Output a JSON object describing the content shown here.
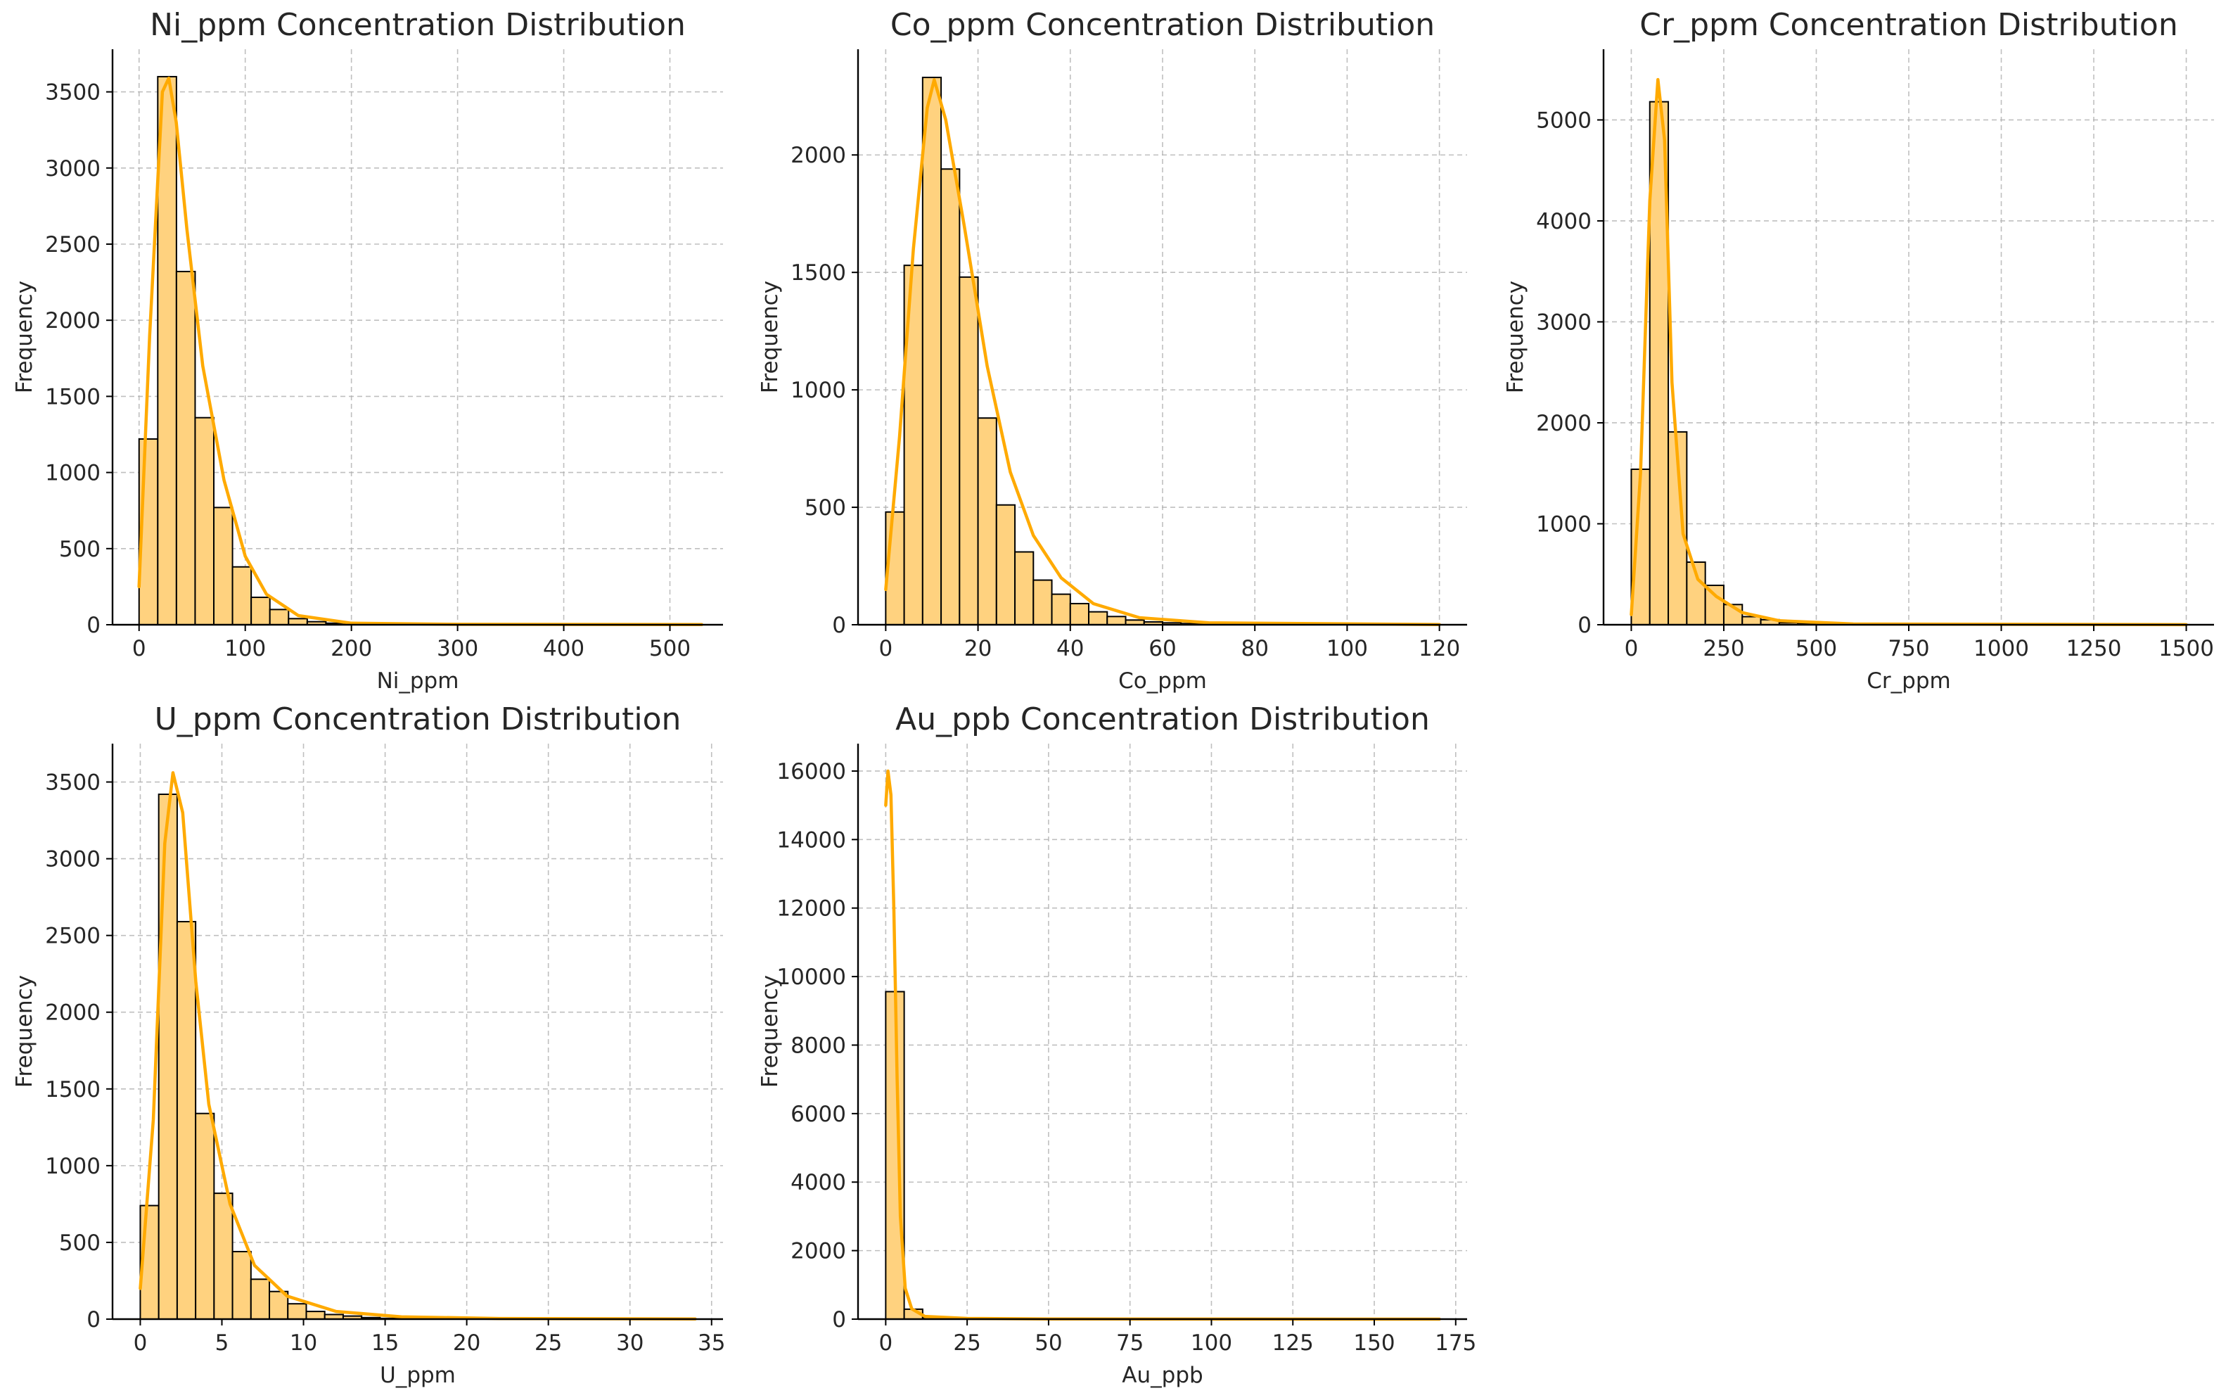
{
  "chart_data": [
    {
      "type": "bar",
      "title": "Ni_ppm Concentration Distribution",
      "xlabel": "Ni_ppm",
      "ylabel": "Frequency",
      "xlim": [
        -25,
        550
      ],
      "ylim": [
        0,
        3780
      ],
      "xticks": [
        0,
        100,
        200,
        300,
        400,
        500
      ],
      "yticks": [
        0,
        500,
        1000,
        1500,
        2000,
        2500,
        3000,
        3500
      ],
      "bin_start": 0,
      "bin_width": 17.6,
      "values": [
        1220,
        3600,
        2320,
        1360,
        770,
        380,
        180,
        100,
        40,
        20,
        10,
        5,
        3,
        3,
        2,
        2,
        2,
        1,
        1,
        1,
        1,
        1,
        1,
        1,
        1,
        1,
        1,
        1,
        1,
        1
      ],
      "kde": [
        [
          0,
          250
        ],
        [
          10,
          1900
        ],
        [
          22,
          3500
        ],
        [
          28,
          3590
        ],
        [
          35,
          3300
        ],
        [
          45,
          2600
        ],
        [
          60,
          1700
        ],
        [
          80,
          950
        ],
        [
          100,
          450
        ],
        [
          120,
          200
        ],
        [
          150,
          60
        ],
        [
          200,
          10
        ],
        [
          300,
          3
        ],
        [
          530,
          1
        ]
      ],
      "grid": true
    },
    {
      "type": "bar",
      "title": "Co_ppm Concentration Distribution",
      "xlabel": "Co_ppm",
      "ylabel": "Frequency",
      "xlim": [
        -6,
        126
      ],
      "ylim": [
        0,
        2450
      ],
      "xticks": [
        0,
        20,
        40,
        60,
        80,
        100,
        120
      ],
      "yticks": [
        0,
        500,
        1000,
        1500,
        2000
      ],
      "bin_start": 0,
      "bin_width": 4,
      "values": [
        480,
        1530,
        2330,
        1940,
        1480,
        880,
        510,
        310,
        190,
        130,
        90,
        55,
        35,
        20,
        12,
        8,
        5,
        4,
        3,
        2,
        2,
        1,
        1,
        1,
        1,
        1,
        1,
        1,
        1,
        1
      ],
      "kde": [
        [
          0,
          150
        ],
        [
          3,
          800
        ],
        [
          6,
          1600
        ],
        [
          9,
          2200
        ],
        [
          10.5,
          2320
        ],
        [
          13,
          2150
        ],
        [
          17,
          1700
        ],
        [
          22,
          1100
        ],
        [
          27,
          650
        ],
        [
          32,
          380
        ],
        [
          38,
          200
        ],
        [
          45,
          90
        ],
        [
          55,
          30
        ],
        [
          70,
          8
        ],
        [
          120,
          1
        ]
      ],
      "grid": true
    },
    {
      "type": "bar",
      "title": "Cr_ppm Concentration Distribution",
      "xlabel": "Cr_ppm",
      "ylabel": "Frequency",
      "xlim": [
        -75,
        1575
      ],
      "ylim": [
        0,
        5700
      ],
      "xticks": [
        0,
        250,
        500,
        750,
        1000,
        1250,
        1500
      ],
      "yticks": [
        0,
        1000,
        2000,
        3000,
        4000,
        5000
      ],
      "bin_start": 0,
      "bin_width": 50,
      "values": [
        1540,
        5180,
        1910,
        620,
        390,
        200,
        80,
        50,
        20,
        10,
        5,
        3,
        2,
        2,
        1,
        1,
        1,
        1,
        1,
        1,
        1,
        1,
        1,
        1,
        1,
        1,
        1,
        1,
        1,
        1
      ],
      "kde": [
        [
          0,
          100
        ],
        [
          25,
          1500
        ],
        [
          50,
          4200
        ],
        [
          72,
          5400
        ],
        [
          90,
          4800
        ],
        [
          110,
          2400
        ],
        [
          140,
          900
        ],
        [
          180,
          450
        ],
        [
          230,
          280
        ],
        [
          300,
          120
        ],
        [
          400,
          40
        ],
        [
          600,
          8
        ],
        [
          1500,
          1
        ]
      ],
      "grid": true
    },
    {
      "type": "bar",
      "title": "U_ppm Concentration Distribution",
      "xlabel": "U_ppm",
      "ylabel": "Frequency",
      "xlim": [
        -1.7,
        35.7
      ],
      "ylim": [
        0,
        3750
      ],
      "xticks": [
        0,
        5,
        10,
        15,
        20,
        25,
        30,
        35
      ],
      "yticks": [
        0,
        500,
        1000,
        1500,
        2000,
        2500,
        3000,
        3500
      ],
      "bin_start": 0,
      "bin_width": 1.13,
      "values": [
        740,
        3420,
        2590,
        1340,
        820,
        440,
        260,
        180,
        100,
        50,
        30,
        20,
        10,
        5,
        5,
        3,
        2,
        2,
        1,
        1,
        1,
        1,
        1,
        1,
        1,
        1,
        1,
        1,
        1,
        1
      ],
      "kde": [
        [
          0,
          200
        ],
        [
          0.8,
          1300
        ],
        [
          1.5,
          3100
        ],
        [
          2,
          3560
        ],
        [
          2.6,
          3300
        ],
        [
          3.4,
          2200
        ],
        [
          4.2,
          1400
        ],
        [
          5.5,
          750
        ],
        [
          7,
          350
        ],
        [
          9,
          150
        ],
        [
          12,
          50
        ],
        [
          16,
          15
        ],
        [
          22,
          4
        ],
        [
          34,
          1
        ]
      ],
      "grid": true
    },
    {
      "type": "bar",
      "title": "Au_ppb Concentration Distribution",
      "xlabel": "Au_ppb",
      "ylabel": "Frequency",
      "xlim": [
        -8.5,
        178.5
      ],
      "ylim": [
        0,
        16800
      ],
      "xticks": [
        0,
        25,
        50,
        75,
        100,
        125,
        150,
        175
      ],
      "yticks": [
        0,
        2000,
        4000,
        6000,
        8000,
        10000,
        12000,
        14000,
        16000
      ],
      "bin_start": 0,
      "bin_width": 5.67,
      "values": [
        9560,
        290,
        50,
        20,
        10,
        5,
        3,
        2,
        2,
        1,
        1,
        1,
        1,
        1,
        1,
        1,
        1,
        1,
        1,
        1,
        1,
        1,
        1,
        1,
        1,
        1,
        1,
        1,
        1,
        1
      ],
      "kde": [
        [
          0,
          15000
        ],
        [
          0.7,
          16000
        ],
        [
          1.6,
          15300
        ],
        [
          2.5,
          12000
        ],
        [
          3.5,
          7000
        ],
        [
          4.5,
          3000
        ],
        [
          6,
          900
        ],
        [
          8,
          300
        ],
        [
          12,
          80
        ],
        [
          25,
          20
        ],
        [
          50,
          5
        ],
        [
          170,
          1
        ]
      ],
      "grid": true
    }
  ]
}
